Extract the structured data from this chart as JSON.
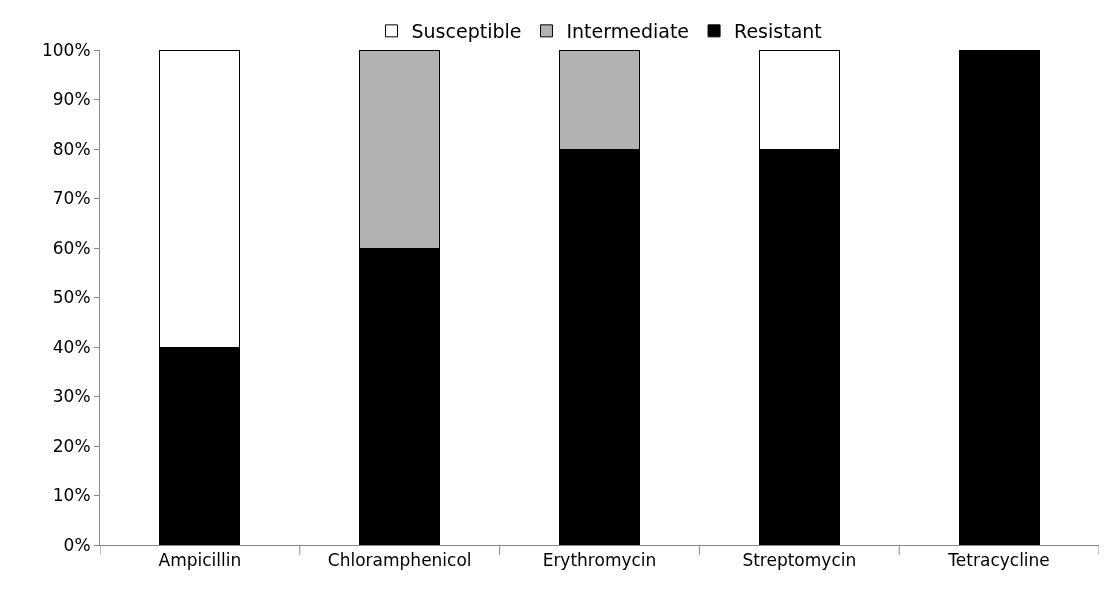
{
  "chart_data": {
    "type": "bar",
    "stacked": true,
    "categories": [
      "Ampicillin",
      "Chloramphenicol",
      "Erythromycin",
      "Streptomycin",
      "Tetracycline"
    ],
    "series": [
      {
        "name": "Resistant",
        "color": "#000000",
        "values": [
          40,
          60,
          80,
          80,
          100
        ]
      },
      {
        "name": "Intermediate",
        "color": "#b2b2b2",
        "values": [
          null,
          40,
          20,
          null,
          null
        ]
      },
      {
        "name": "Susceptible",
        "color": "#ffffff",
        "values": [
          60,
          null,
          null,
          20,
          null
        ]
      }
    ],
    "ylim": [
      0,
      100
    ],
    "yticks": [
      {
        "value": 0,
        "label": "0%"
      },
      {
        "value": 10,
        "label": "10%"
      },
      {
        "value": 20,
        "label": "20%"
      },
      {
        "value": 30,
        "label": "30%"
      },
      {
        "value": 40,
        "label": "40%"
      },
      {
        "value": 50,
        "label": "50%"
      },
      {
        "value": 60,
        "label": "60%"
      },
      {
        "value": 70,
        "label": "70%"
      },
      {
        "value": 80,
        "label": "80%"
      },
      {
        "value": 90,
        "label": "90%"
      },
      {
        "value": 100,
        "label": "100%"
      }
    ],
    "grid": false,
    "legend": "top"
  }
}
